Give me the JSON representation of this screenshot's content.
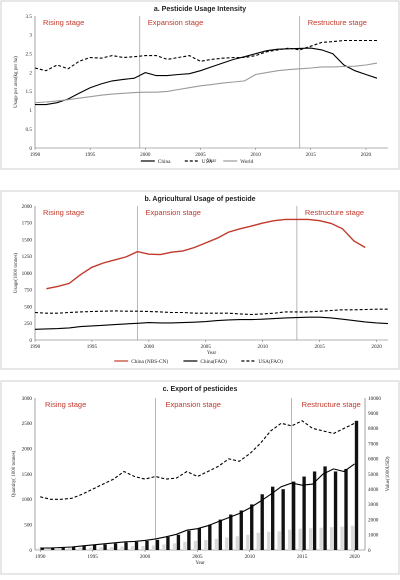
{
  "chart_data": [
    {
      "id": "a",
      "type": "line",
      "title": "a. Pesticide Usage Intensity",
      "stages": [
        "Rising stage",
        "Expansion stage",
        "Restructure stage"
      ],
      "stage_boundaries": [
        1999.5,
        2014
      ],
      "xlabel": "Year",
      "ylabel": "Usage per area(kg per ha)",
      "xlim": [
        1990,
        2022
      ],
      "ylim": [
        0,
        3.5
      ],
      "xticks": [
        1990,
        1995,
        2000,
        2005,
        2010,
        2015,
        2020
      ],
      "yticks": [
        0,
        0.5,
        1,
        1.5,
        2,
        2.5,
        3,
        3.5
      ],
      "legend_position": "bottom",
      "series": [
        {
          "name": "China",
          "style": "solid",
          "color": "#000000",
          "x": [
            1990,
            1991,
            1992,
            1993,
            1994,
            1995,
            1996,
            1997,
            1998,
            1999,
            2000,
            2001,
            2002,
            2003,
            2004,
            2005,
            2006,
            2007,
            2008,
            2009,
            2010,
            2011,
            2012,
            2013,
            2014,
            2015,
            2016,
            2017,
            2018,
            2019,
            2020,
            2021
          ],
          "values": [
            1.15,
            1.15,
            1.2,
            1.3,
            1.45,
            1.6,
            1.7,
            1.78,
            1.82,
            1.85,
            2.0,
            1.92,
            1.92,
            1.95,
            1.97,
            2.05,
            2.15,
            2.25,
            2.35,
            2.42,
            2.5,
            2.58,
            2.62,
            2.63,
            2.64,
            2.65,
            2.6,
            2.5,
            2.2,
            2.05,
            1.95,
            1.85
          ]
        },
        {
          "name": "USA",
          "style": "dashed",
          "color": "#000000",
          "x": [
            1990,
            1991,
            1992,
            1993,
            1994,
            1995,
            1996,
            1997,
            1998,
            1999,
            2000,
            2001,
            2002,
            2003,
            2004,
            2005,
            2006,
            2007,
            2008,
            2009,
            2010,
            2011,
            2012,
            2013,
            2014,
            2015,
            2016,
            2017,
            2018,
            2019,
            2020,
            2021
          ],
          "values": [
            2.12,
            2.05,
            2.2,
            2.1,
            2.3,
            2.4,
            2.38,
            2.45,
            2.4,
            2.42,
            2.45,
            2.45,
            2.35,
            2.4,
            2.45,
            2.3,
            2.35,
            2.38,
            2.4,
            2.4,
            2.45,
            2.55,
            2.6,
            2.65,
            2.6,
            2.7,
            2.8,
            2.82,
            2.85,
            2.85,
            2.85,
            2.85
          ]
        },
        {
          "name": "World",
          "style": "solid",
          "color": "#9a9a9a",
          "x": [
            1990,
            1991,
            1992,
            1993,
            1994,
            1995,
            1996,
            1997,
            1998,
            1999,
            2000,
            2001,
            2002,
            2003,
            2004,
            2005,
            2006,
            2007,
            2008,
            2009,
            2010,
            2011,
            2012,
            2013,
            2014,
            2015,
            2016,
            2017,
            2018,
            2019,
            2020,
            2021
          ],
          "values": [
            1.2,
            1.22,
            1.25,
            1.28,
            1.32,
            1.36,
            1.4,
            1.43,
            1.45,
            1.47,
            1.48,
            1.48,
            1.5,
            1.55,
            1.6,
            1.65,
            1.68,
            1.72,
            1.75,
            1.78,
            1.95,
            2.0,
            2.05,
            2.08,
            2.1,
            2.12,
            2.15,
            2.15,
            2.16,
            2.17,
            2.2,
            2.25
          ]
        }
      ]
    },
    {
      "id": "b",
      "type": "line",
      "title": "b. Agricultural Usage of pesticide",
      "stages": [
        "Rising stage",
        "Expansion stage",
        "Restructure stage"
      ],
      "stage_boundaries": [
        1999,
        2013
      ],
      "xlabel": "Year",
      "ylabel": "Usage(1000 tonnes)",
      "xlim": [
        1990,
        2021
      ],
      "ylim": [
        0,
        2000
      ],
      "xticks": [
        1990,
        1995,
        2000,
        2005,
        2010,
        2015,
        2020
      ],
      "yticks": [
        0,
        250,
        500,
        750,
        1000,
        1250,
        1500,
        1750,
        2000
      ],
      "legend_position": "bottom",
      "series": [
        {
          "name": "China (NBS-CN)",
          "style": "solid",
          "color": "#c0392b",
          "x": [
            1991,
            1992,
            1993,
            1994,
            1995,
            1996,
            1997,
            1998,
            1999,
            2000,
            2001,
            2002,
            2003,
            2004,
            2005,
            2006,
            2007,
            2008,
            2009,
            2010,
            2011,
            2012,
            2013,
            2014,
            2015,
            2016,
            2017,
            2018,
            2019
          ],
          "values": [
            765,
            800,
            845,
            975,
            1085,
            1150,
            1195,
            1240,
            1320,
            1280,
            1275,
            1310,
            1330,
            1380,
            1450,
            1520,
            1610,
            1660,
            1700,
            1745,
            1780,
            1800,
            1800,
            1800,
            1780,
            1740,
            1660,
            1480,
            1380
          ]
        },
        {
          "name": "China(FAO)",
          "style": "solid",
          "color": "#000000",
          "x": [
            1990,
            1991,
            1992,
            1993,
            1994,
            1995,
            1996,
            1997,
            1998,
            1999,
            2000,
            2001,
            2002,
            2003,
            2004,
            2005,
            2006,
            2007,
            2008,
            2009,
            2010,
            2011,
            2012,
            2013,
            2014,
            2015,
            2016,
            2017,
            2018,
            2019,
            2020,
            2021
          ],
          "values": [
            160,
            165,
            170,
            180,
            200,
            210,
            220,
            230,
            240,
            250,
            260,
            255,
            255,
            260,
            265,
            275,
            290,
            300,
            305,
            305,
            310,
            320,
            330,
            335,
            340,
            340,
            330,
            310,
            290,
            270,
            255,
            245
          ]
        },
        {
          "name": "USA(FAO)",
          "style": "dashed",
          "color": "#000000",
          "x": [
            1990,
            1991,
            1992,
            1993,
            1994,
            1995,
            1996,
            1997,
            1998,
            1999,
            2000,
            2001,
            2002,
            2003,
            2004,
            2005,
            2006,
            2007,
            2008,
            2009,
            2010,
            2011,
            2012,
            2013,
            2014,
            2015,
            2016,
            2017,
            2018,
            2019,
            2020,
            2021
          ],
          "values": [
            410,
            400,
            400,
            410,
            420,
            425,
            430,
            435,
            430,
            430,
            425,
            420,
            410,
            410,
            400,
            400,
            400,
            400,
            390,
            380,
            390,
            400,
            420,
            420,
            420,
            430,
            440,
            450,
            450,
            455,
            460,
            460
          ]
        }
      ]
    },
    {
      "id": "c",
      "type": "bar",
      "title": "c. Export of pesticides",
      "stages": [
        "Rising stage",
        "Expansion stage",
        "Restructure stage"
      ],
      "stage_boundaries": [
        2001,
        2014
      ],
      "xlabel": "Year",
      "ylabel": "Quantity( 1000 tonnes)",
      "ylabel_right": "Value(1000USD)",
      "xlim": [
        1989.5,
        2021
      ],
      "ylim": [
        0,
        3000
      ],
      "ylim_right": [
        0,
        10000
      ],
      "xticks": [
        1990,
        1995,
        2000,
        2005,
        2010,
        2015,
        2020
      ],
      "yticks": [
        0,
        500,
        1000,
        1500,
        2000,
        2500,
        3000
      ],
      "yticks_right": [
        0,
        1000,
        2000,
        3000,
        4000,
        5000,
        6000,
        7000,
        8000,
        9000,
        10000
      ],
      "legend_position": "bottom",
      "x": [
        1990,
        1991,
        1992,
        1993,
        1994,
        1995,
        1996,
        1997,
        1998,
        1999,
        2000,
        2001,
        2002,
        2003,
        2004,
        2005,
        2006,
        2007,
        2008,
        2009,
        2010,
        2011,
        2012,
        2013,
        2014,
        2015,
        2016,
        2017,
        2018,
        2019,
        2020
      ],
      "bars_black": [
        40,
        50,
        60,
        60,
        80,
        100,
        110,
        130,
        150,
        160,
        180,
        200,
        260,
        300,
        380,
        430,
        500,
        600,
        700,
        780,
        900,
        1100,
        1250,
        1200,
        1350,
        1450,
        1550,
        1650,
        1550,
        1600,
        2550
      ],
      "bars_gray": [
        30,
        35,
        40,
        40,
        45,
        50,
        55,
        60,
        70,
        75,
        80,
        90,
        110,
        130,
        160,
        180,
        200,
        220,
        250,
        270,
        300,
        340,
        360,
        370,
        400,
        420,
        430,
        440,
        450,
        460,
        480
      ],
      "series": [
        {
          "name": "China",
          "style": "solid",
          "color": "#000000",
          "values": [
            40,
            40,
            50,
            60,
            80,
            100,
            120,
            140,
            160,
            170,
            190,
            220,
            260,
            310,
            390,
            420,
            480,
            560,
            640,
            720,
            830,
            960,
            1100,
            1250,
            1320,
            1280,
            1300,
            1500,
            1600,
            1550,
            1700
          ]
        },
        {
          "name": "World",
          "style": "dashed",
          "color": "#000000",
          "values": [
            1050,
            1000,
            1000,
            1020,
            1100,
            1200,
            1300,
            1400,
            1550,
            1450,
            1400,
            1450,
            1400,
            1420,
            1550,
            1450,
            1550,
            1650,
            1800,
            1750,
            1900,
            2100,
            2350,
            2500,
            2450,
            2550,
            2400,
            2350,
            2300,
            2400,
            2500
          ]
        }
      ]
    }
  ]
}
